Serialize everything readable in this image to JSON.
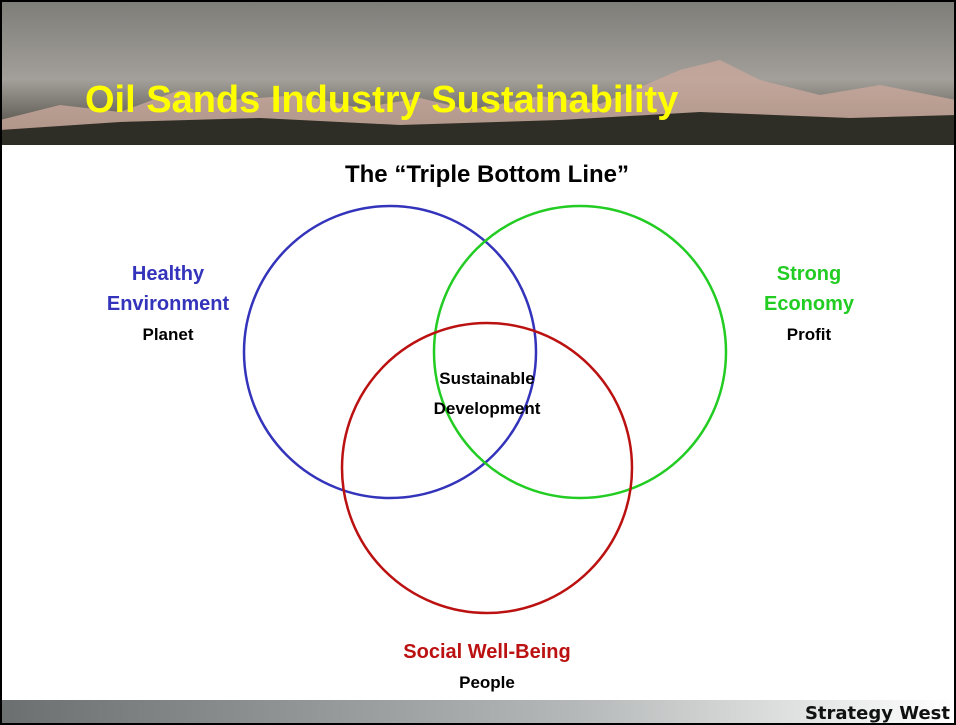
{
  "header": {
    "title": "Oil Sands Industry Sustainability"
  },
  "diagram": {
    "subtitle": "The “Triple Bottom Line”",
    "nodes": [
      {
        "lines": [
          "Healthy",
          "Environment"
        ],
        "caption": "Planet"
      },
      {
        "lines": [
          "Strong",
          "Economy"
        ],
        "caption": "Profit"
      },
      {
        "lines": [
          "Social Well-Being"
        ],
        "caption": "People"
      }
    ],
    "center": {
      "lines": [
        "Sustainable",
        "Development"
      ]
    }
  },
  "footer": {
    "logo": "Strategy West"
  }
}
